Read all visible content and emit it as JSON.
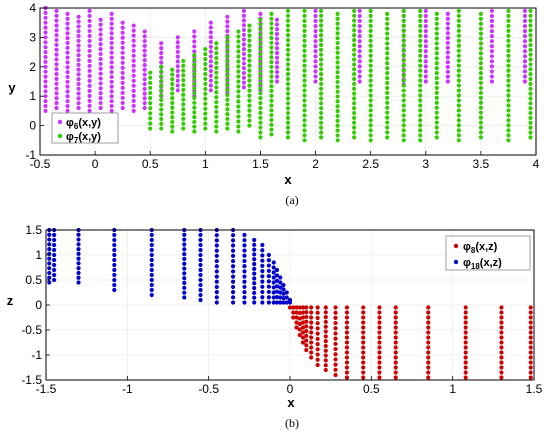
{
  "chart_data": [
    {
      "type": "scatter",
      "panel_label": "(a)",
      "xlabel": "x",
      "ylabel": "y",
      "xlim": [
        -0.5,
        4
      ],
      "ylim": [
        -1,
        4
      ],
      "xticks": [
        "-0.5",
        "0",
        "0.5",
        "1",
        "1.5",
        "2",
        "2.5",
        "3",
        "3.5",
        "4"
      ],
      "yticks": [
        "-1",
        "0",
        "1",
        "2",
        "3",
        "4"
      ],
      "legend_position": "lower-left",
      "series": [
        {
          "name_main": "φ",
          "name_sub": "6",
          "name_tail": "(x,y)",
          "color": "#cc33ff",
          "x_cols": [
            -0.45,
            -0.35,
            -0.25,
            -0.15,
            -0.05,
            0.05,
            0.15,
            0.25,
            0.35,
            0.45,
            0.6,
            0.75,
            0.9,
            1.05,
            1.2,
            1.35,
            1.5,
            1.65,
            2.0,
            2.4,
            2.8,
            3.0,
            3.2,
            3.6,
            3.9
          ],
          "y_min": [
            0.5,
            0.6,
            0.5,
            0.6,
            0.5,
            0.6,
            0.5,
            0.6,
            0.5,
            0.6,
            1.0,
            1.2,
            1.0,
            1.2,
            1.1,
            1.3,
            1.2,
            1.5,
            1.5,
            1.5,
            1.4,
            1.5,
            1.5,
            1.5,
            1.5
          ],
          "y_max": [
            4.0,
            3.9,
            3.8,
            3.7,
            3.9,
            3.6,
            3.8,
            3.5,
            3.4,
            3.2,
            2.8,
            3.0,
            3.2,
            3.5,
            3.7,
            3.9,
            3.8,
            3.6,
            3.9,
            3.9,
            3.9,
            3.9,
            3.8,
            3.9,
            3.9
          ]
        },
        {
          "name_main": "φ",
          "name_sub": "7",
          "name_tail": "(x,y)",
          "color": "#33cc00",
          "x_cols": [
            0.5,
            0.6,
            0.7,
            0.8,
            0.9,
            1.0,
            1.1,
            1.2,
            1.3,
            1.4,
            1.5,
            1.6,
            1.75,
            1.9,
            2.05,
            2.2,
            2.35,
            2.5,
            2.65,
            2.8,
            2.95,
            3.1,
            3.3,
            3.5,
            3.75,
            3.95
          ],
          "y_min": [
            -0.1,
            -0.1,
            -0.2,
            -0.1,
            -0.2,
            -0.1,
            -0.2,
            -0.1,
            -0.2,
            0.0,
            -0.4,
            -0.3,
            -0.4,
            -0.5,
            -0.4,
            -0.5,
            -0.4,
            -0.5,
            -0.4,
            -0.5,
            -0.5,
            -0.4,
            -0.5,
            -0.4,
            -0.5,
            -0.4
          ],
          "y_max": [
            1.8,
            2.0,
            1.9,
            2.2,
            2.4,
            2.6,
            2.8,
            3.0,
            3.2,
            3.4,
            3.6,
            3.8,
            3.9,
            3.9,
            3.9,
            3.8,
            3.9,
            3.9,
            3.8,
            3.9,
            3.9,
            3.8,
            3.9,
            3.8,
            3.9,
            3.9
          ]
        }
      ]
    },
    {
      "type": "scatter",
      "panel_label": "(b)",
      "xlabel": "x",
      "ylabel": "z",
      "xlim": [
        -1.5,
        1.5
      ],
      "ylim": [
        -1.5,
        1.5
      ],
      "xticks": [
        "-1.5",
        "-1",
        "-0.5",
        "0",
        "0.5",
        "1",
        "1.5"
      ],
      "yticks": [
        "-1.5",
        "-1",
        "-0.5",
        "0",
        "0.5",
        "1",
        "1.5"
      ],
      "legend_position": "top-right",
      "series": [
        {
          "name_main": "φ",
          "name_sub": "8",
          "name_tail": "(x,z)",
          "color": "#cc0000",
          "x_cols": [
            0.0,
            0.02,
            0.04,
            0.06,
            0.08,
            0.1,
            0.13,
            0.17,
            0.22,
            0.28,
            0.35,
            0.45,
            0.55,
            0.65,
            0.85,
            1.08,
            1.3,
            1.48
          ],
          "y_min": [
            -0.05,
            -0.25,
            -0.45,
            -0.6,
            -0.75,
            -0.9,
            -1.05,
            -1.2,
            -1.3,
            -1.4,
            -1.45,
            -1.45,
            -1.45,
            -1.45,
            -1.45,
            -1.45,
            -1.45,
            -1.45
          ],
          "y_max": [
            -0.05,
            -0.05,
            -0.05,
            -0.05,
            -0.05,
            -0.05,
            -0.05,
            -0.05,
            -0.05,
            -0.05,
            -0.05,
            -0.05,
            -0.05,
            -0.05,
            -0.05,
            -0.05,
            -0.05,
            -0.05
          ]
        },
        {
          "name_main": "φ",
          "name_sub": "18",
          "name_tail": "(x,z)",
          "color": "#0000cc",
          "x_cols": [
            -1.48,
            -1.45,
            -1.3,
            -1.08,
            -0.85,
            -0.65,
            -0.55,
            -0.45,
            -0.35,
            -0.28,
            -0.22,
            -0.17,
            -0.13,
            -0.1,
            -0.08,
            -0.06,
            -0.04,
            -0.02,
            0.0
          ],
          "y_min": [
            0.45,
            0.5,
            0.45,
            0.3,
            0.2,
            0.15,
            0.1,
            0.05,
            0.05,
            0.05,
            0.05,
            0.05,
            0.05,
            0.05,
            0.05,
            0.05,
            0.05,
            0.05,
            0.05
          ],
          "y_max": [
            1.5,
            1.5,
            1.5,
            1.5,
            1.5,
            1.5,
            1.5,
            1.5,
            1.5,
            1.4,
            1.3,
            1.2,
            1.0,
            0.85,
            0.7,
            0.55,
            0.4,
            0.25,
            0.1
          ]
        }
      ]
    }
  ]
}
